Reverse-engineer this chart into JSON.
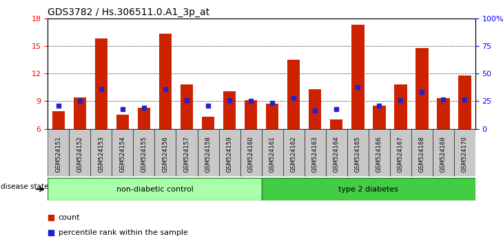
{
  "title": "GDS3782 / Hs.306511.0.A1_3p_at",
  "samples": [
    "GSM524151",
    "GSM524152",
    "GSM524153",
    "GSM524154",
    "GSM524155",
    "GSM524156",
    "GSM524157",
    "GSM524158",
    "GSM524159",
    "GSM524160",
    "GSM524161",
    "GSM524162",
    "GSM524163",
    "GSM524164",
    "GSM524165",
    "GSM524166",
    "GSM524167",
    "GSM524168",
    "GSM524169",
    "GSM524170"
  ],
  "counts": [
    7.9,
    9.4,
    15.8,
    7.5,
    8.3,
    16.3,
    10.8,
    7.3,
    10.1,
    9.1,
    8.7,
    13.5,
    10.3,
    7.0,
    17.3,
    8.5,
    10.8,
    14.8,
    9.3,
    11.8
  ],
  "percentile_rank": [
    8.5,
    9.0,
    10.3,
    8.1,
    8.3,
    10.3,
    9.1,
    8.5,
    9.1,
    9.0,
    8.8,
    9.3,
    8.0,
    8.1,
    10.5,
    8.5,
    9.1,
    10.0,
    9.2,
    9.2
  ],
  "ylim_left": [
    6,
    18
  ],
  "yticks_left": [
    6,
    9,
    12,
    15,
    18
  ],
  "yticks_right": [
    0,
    25,
    50,
    75,
    100
  ],
  "bar_color": "#cc2200",
  "square_color": "#2222cc",
  "group1_label": "non-diabetic control",
  "group2_label": "type 2 diabetes",
  "group1_count": 10,
  "group2_count": 10,
  "group1_color": "#aaffaa",
  "group2_color": "#44cc44",
  "disease_label": "disease state",
  "legend_count_label": "count",
  "legend_pct_label": "percentile rank within the sample",
  "cell_bg_color": "#c8c8c8",
  "plot_bg": "#ffffff",
  "title_fontsize": 10
}
